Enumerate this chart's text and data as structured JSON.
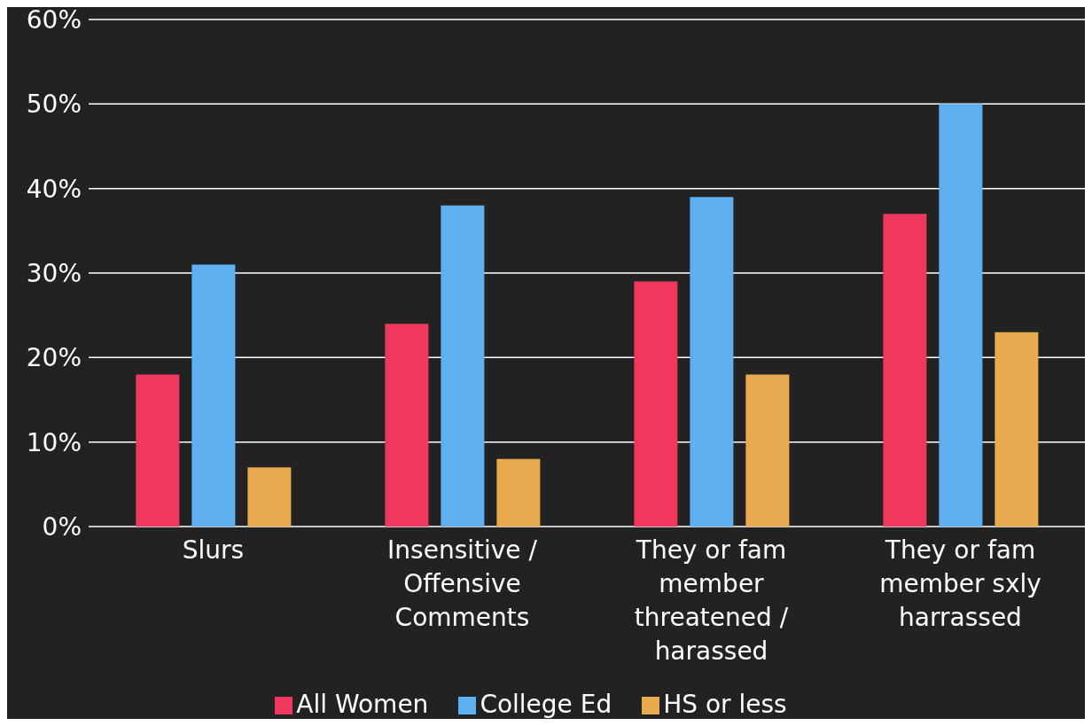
{
  "chart_data": {
    "type": "bar",
    "categories": [
      "Slurs",
      "Insensitive / Offensive Comments",
      "They or fam member threatened / harassed",
      "They or fam member sxly harrassed"
    ],
    "series": [
      {
        "name": "All Women",
        "color": "#f0385e",
        "values": [
          18,
          24,
          29,
          37
        ]
      },
      {
        "name": "College Ed",
        "color": "#5fb0f0",
        "values": [
          31,
          38,
          39,
          50
        ]
      },
      {
        "name": "HS or less",
        "color": "#e8aa4e",
        "values": [
          7,
          8,
          18,
          23
        ]
      }
    ],
    "ylim": [
      0,
      60
    ],
    "yticks": [
      {
        "value": 0,
        "label": "0%"
      },
      {
        "value": 10,
        "label": "10%"
      },
      {
        "value": 20,
        "label": "20%"
      },
      {
        "value": 30,
        "label": "30%"
      },
      {
        "value": 40,
        "label": "40%"
      },
      {
        "value": 50,
        "label": "50%"
      },
      {
        "value": 60,
        "label": "60%"
      }
    ],
    "grid": "y",
    "legend": "bottom"
  }
}
